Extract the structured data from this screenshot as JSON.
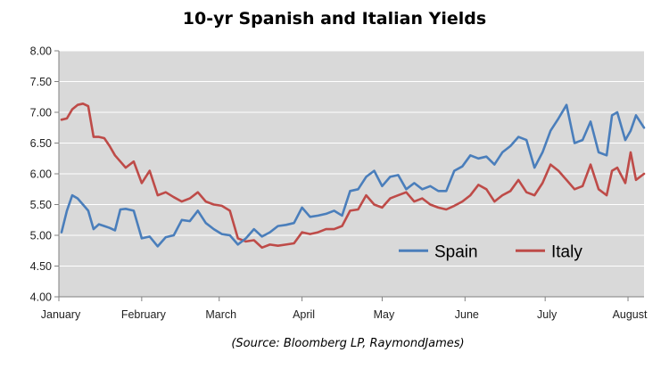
{
  "chart_data": {
    "type": "line",
    "title": "10-yr Spanish and Italian Yields",
    "source": "(Source: Bloomberg LP, RaymondJames)",
    "xlabel": "",
    "ylabel": "",
    "x_start": "2012-01-01",
    "x_end": "2012-08-07",
    "categories": [
      "January",
      "February",
      "March",
      "April",
      "May",
      "June",
      "July",
      "August"
    ],
    "ylim": [
      4.0,
      8.0
    ],
    "yticks": [
      "4.00",
      "4.50",
      "5.00",
      "5.50",
      "6.00",
      "6.50",
      "7.00",
      "7.50",
      "8.00"
    ],
    "grid": true,
    "legend": "bottom-right",
    "colors": {
      "plot_bg": "#d9d9d9",
      "spain": "#4a7ebb",
      "italy": "#be4b48",
      "grid": "#ffffff"
    },
    "series": [
      {
        "name": "Spain",
        "x": [
          "2012-01-02",
          "2012-01-04",
          "2012-01-06",
          "2012-01-08",
          "2012-01-10",
          "2012-01-12",
          "2012-01-14",
          "2012-01-16",
          "2012-01-18",
          "2012-01-20",
          "2012-01-22",
          "2012-01-24",
          "2012-01-26",
          "2012-01-29",
          "2012-02-01",
          "2012-02-04",
          "2012-02-07",
          "2012-02-10",
          "2012-02-13",
          "2012-02-16",
          "2012-02-19",
          "2012-02-22",
          "2012-02-25",
          "2012-02-28",
          "2012-03-02",
          "2012-03-05",
          "2012-03-08",
          "2012-03-11",
          "2012-03-14",
          "2012-03-17",
          "2012-03-20",
          "2012-03-23",
          "2012-03-26",
          "2012-03-29",
          "2012-04-01",
          "2012-04-04",
          "2012-04-07",
          "2012-04-10",
          "2012-04-13",
          "2012-04-16",
          "2012-04-19",
          "2012-04-22",
          "2012-04-25",
          "2012-04-28",
          "2012-05-01",
          "2012-05-04",
          "2012-05-07",
          "2012-05-10",
          "2012-05-13",
          "2012-05-16",
          "2012-05-19",
          "2012-05-22",
          "2012-05-25",
          "2012-05-28",
          "2012-05-31",
          "2012-06-03",
          "2012-06-06",
          "2012-06-09",
          "2012-06-12",
          "2012-06-15",
          "2012-06-18",
          "2012-06-21",
          "2012-06-24",
          "2012-06-27",
          "2012-06-30",
          "2012-07-03",
          "2012-07-06",
          "2012-07-09",
          "2012-07-12",
          "2012-07-15",
          "2012-07-18",
          "2012-07-21",
          "2012-07-24",
          "2012-07-26",
          "2012-07-28",
          "2012-07-31",
          "2012-08-02",
          "2012-08-04",
          "2012-08-07"
        ],
        "values": [
          5.05,
          5.4,
          5.65,
          5.6,
          5.5,
          5.4,
          5.1,
          5.18,
          5.15,
          5.12,
          5.08,
          5.42,
          5.43,
          5.4,
          4.95,
          4.98,
          4.82,
          4.97,
          5.0,
          5.25,
          5.23,
          5.4,
          5.2,
          5.1,
          5.02,
          5.0,
          4.85,
          4.95,
          5.1,
          4.98,
          5.05,
          5.15,
          5.17,
          5.2,
          5.45,
          5.3,
          5.32,
          5.35,
          5.4,
          5.32,
          5.72,
          5.75,
          5.95,
          6.05,
          5.8,
          5.95,
          5.98,
          5.75,
          5.85,
          5.75,
          5.8,
          5.72,
          5.72,
          6.05,
          6.12,
          6.3,
          6.25,
          6.28,
          6.15,
          6.35,
          6.45,
          6.6,
          6.55,
          6.1,
          6.35,
          6.7,
          6.9,
          7.12,
          6.5,
          6.55,
          6.85,
          6.35,
          6.3,
          6.95,
          7.0,
          6.55,
          6.7,
          6.95,
          6.75
        ]
      },
      {
        "name": "Italy",
        "x": [
          "2012-01-02",
          "2012-01-04",
          "2012-01-06",
          "2012-01-08",
          "2012-01-10",
          "2012-01-12",
          "2012-01-14",
          "2012-01-16",
          "2012-01-18",
          "2012-01-20",
          "2012-01-22",
          "2012-01-24",
          "2012-01-26",
          "2012-01-29",
          "2012-02-01",
          "2012-02-04",
          "2012-02-07",
          "2012-02-10",
          "2012-02-13",
          "2012-02-16",
          "2012-02-19",
          "2012-02-22",
          "2012-02-25",
          "2012-02-28",
          "2012-03-02",
          "2012-03-05",
          "2012-03-08",
          "2012-03-11",
          "2012-03-14",
          "2012-03-17",
          "2012-03-20",
          "2012-03-23",
          "2012-03-26",
          "2012-03-29",
          "2012-04-01",
          "2012-04-04",
          "2012-04-07",
          "2012-04-10",
          "2012-04-13",
          "2012-04-16",
          "2012-04-19",
          "2012-04-22",
          "2012-04-25",
          "2012-04-28",
          "2012-05-01",
          "2012-05-04",
          "2012-05-07",
          "2012-05-10",
          "2012-05-13",
          "2012-05-16",
          "2012-05-19",
          "2012-05-22",
          "2012-05-25",
          "2012-05-28",
          "2012-05-31",
          "2012-06-03",
          "2012-06-06",
          "2012-06-09",
          "2012-06-12",
          "2012-06-15",
          "2012-06-18",
          "2012-06-21",
          "2012-06-24",
          "2012-06-27",
          "2012-06-30",
          "2012-07-03",
          "2012-07-06",
          "2012-07-09",
          "2012-07-12",
          "2012-07-15",
          "2012-07-18",
          "2012-07-21",
          "2012-07-24",
          "2012-07-26",
          "2012-07-28",
          "2012-07-31",
          "2012-08-02",
          "2012-08-04",
          "2012-08-07"
        ],
        "values": [
          6.88,
          6.9,
          7.05,
          7.12,
          7.14,
          7.1,
          6.6,
          6.6,
          6.58,
          6.45,
          6.3,
          6.2,
          6.1,
          6.2,
          5.85,
          6.05,
          5.65,
          5.7,
          5.62,
          5.55,
          5.6,
          5.7,
          5.55,
          5.5,
          5.48,
          5.4,
          4.95,
          4.9,
          4.92,
          4.8,
          4.85,
          4.83,
          4.85,
          4.87,
          5.05,
          5.02,
          5.05,
          5.1,
          5.1,
          5.15,
          5.4,
          5.42,
          5.65,
          5.5,
          5.45,
          5.6,
          5.65,
          5.7,
          5.55,
          5.6,
          5.5,
          5.45,
          5.42,
          5.48,
          5.55,
          5.65,
          5.82,
          5.75,
          5.55,
          5.65,
          5.72,
          5.9,
          5.7,
          5.65,
          5.85,
          6.15,
          6.05,
          5.9,
          5.75,
          5.8,
          6.15,
          5.75,
          5.65,
          6.05,
          6.1,
          5.85,
          6.35,
          5.9,
          6.0
        ]
      }
    ]
  }
}
